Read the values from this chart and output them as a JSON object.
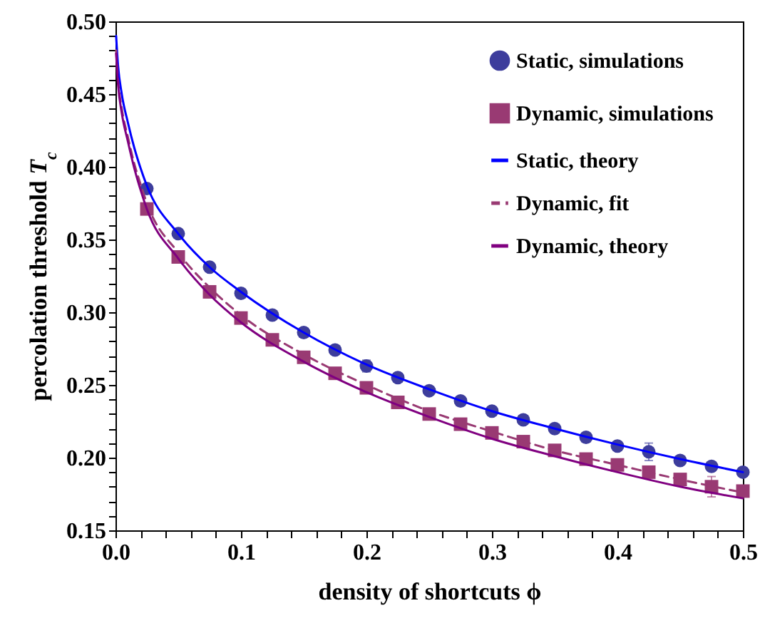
{
  "chart_data": {
    "type": "scatter",
    "xlabel": "density of shortcuts ϕ",
    "ylabel": "percolation threshold T$_{c}$",
    "xlim": [
      0,
      0.5
    ],
    "ylim": [
      0.15,
      0.5
    ],
    "xticks": [
      {
        "value": 0,
        "label": "0.0"
      },
      {
        "value": 0.02,
        "label": null
      },
      {
        "value": 0.04,
        "label": null
      },
      {
        "value": 0.06,
        "label": null
      },
      {
        "value": 0.08,
        "label": null
      },
      0.1,
      {
        "value": 0.12,
        "label": null
      },
      {
        "value": 0.14,
        "label": null
      },
      {
        "value": 0.16,
        "label": null
      },
      {
        "value": 0.18,
        "label": null
      },
      0.2,
      {
        "value": 0.22,
        "label": null
      },
      {
        "value": 0.24,
        "label": null
      },
      {
        "value": 0.26,
        "label": null
      },
      {
        "value": 0.28,
        "label": null
      },
      0.3,
      {
        "value": 0.32,
        "label": null
      },
      {
        "value": 0.34,
        "label": null
      },
      {
        "value": 0.36,
        "label": null
      },
      {
        "value": 0.38,
        "label": null
      },
      0.4,
      {
        "value": 0.42,
        "label": null
      },
      {
        "value": 0.44,
        "label": null
      },
      {
        "value": 0.46,
        "label": null
      },
      {
        "value": 0.48,
        "label": null
      },
      0.5
    ],
    "yticks": [
      0.15,
      {
        "value": 0.16,
        "label": null
      },
      {
        "value": 0.17,
        "label": null
      },
      {
        "value": 0.18,
        "label": null
      },
      {
        "value": 0.19,
        "label": null
      },
      {
        "value": 0.2,
        "label": "0.20"
      },
      {
        "value": 0.21,
        "label": null
      },
      {
        "value": 0.22,
        "label": null
      },
      {
        "value": 0.23,
        "label": null
      },
      {
        "value": 0.24,
        "label": null
      },
      0.25,
      {
        "value": 0.26,
        "label": null
      },
      {
        "value": 0.27,
        "label": null
      },
      {
        "value": 0.28,
        "label": null
      },
      {
        "value": 0.29,
        "label": null
      },
      {
        "value": 0.3,
        "label": "0.30"
      },
      {
        "value": 0.31,
        "label": null
      },
      {
        "value": 0.32,
        "label": null
      },
      {
        "value": 0.33,
        "label": null
      },
      {
        "value": 0.34,
        "label": null
      },
      0.35,
      {
        "value": 0.36,
        "label": null
      },
      {
        "value": 0.37,
        "label": null
      },
      {
        "value": 0.38,
        "label": null
      },
      {
        "value": 0.39,
        "label": null
      },
      {
        "value": 0.4,
        "label": "0.40"
      },
      {
        "value": 0.41,
        "label": null
      },
      {
        "value": 0.42,
        "label": null
      },
      {
        "value": 0.43,
        "label": null
      },
      {
        "value": 0.44,
        "label": null
      },
      0.45,
      {
        "value": 0.46,
        "label": null
      },
      {
        "value": 0.47,
        "label": null
      },
      {
        "value": 0.48,
        "label": null
      },
      {
        "value": 0.49,
        "label": null
      },
      {
        "value": 0.5,
        "label": "0.50"
      }
    ],
    "legend": "top right",
    "series": [
      {
        "name": "Static, simulations",
        "marker": "circle",
        "color": "#3d3d9c",
        "x": [
          0.025,
          0.05,
          0.075,
          0.1,
          0.125,
          0.15,
          0.175,
          0.2,
          0.225,
          0.25,
          0.275,
          0.3,
          0.325,
          0.35,
          0.375,
          0.4,
          0.425,
          0.45,
          0.475,
          0.5
        ],
        "values": [
          0.385,
          0.354,
          0.331,
          0.313,
          0.298,
          0.286,
          0.274,
          0.263,
          0.255,
          0.246,
          0.239,
          0.232,
          0.226,
          0.22,
          0.214,
          0.208,
          0.204,
          0.198,
          0.194,
          0.19
        ],
        "errors": [
          null,
          null,
          null,
          null,
          null,
          null,
          null,
          0.004,
          null,
          null,
          null,
          null,
          null,
          null,
          null,
          null,
          0.006,
          null,
          null,
          null
        ]
      },
      {
        "name": "Dynamic, simulations",
        "marker": "square",
        "color": "#993a73",
        "x": [
          0.025,
          0.05,
          0.075,
          0.1,
          0.125,
          0.15,
          0.175,
          0.2,
          0.225,
          0.25,
          0.275,
          0.3,
          0.325,
          0.35,
          0.375,
          0.4,
          0.425,
          0.45,
          0.475,
          0.5
        ],
        "values": [
          0.371,
          0.338,
          0.314,
          0.296,
          0.281,
          0.269,
          0.258,
          0.248,
          0.238,
          0.23,
          0.223,
          0.217,
          0.211,
          0.205,
          0.199,
          0.195,
          0.19,
          0.185,
          0.18,
          0.177
        ],
        "errors": [
          null,
          null,
          null,
          null,
          null,
          null,
          null,
          null,
          null,
          null,
          null,
          null,
          null,
          null,
          null,
          null,
          null,
          null,
          0.007,
          null
        ]
      },
      {
        "name": "Static, theory",
        "type": "line",
        "line_style": "solid",
        "color": "#0000ff",
        "x": [
          0.0005,
          0.002,
          0.005,
          0.01,
          0.015,
          0.02,
          0.025,
          0.05,
          0.075,
          0.1,
          0.15,
          0.2,
          0.25,
          0.3,
          0.35,
          0.4,
          0.45,
          0.5
        ],
        "values": [
          0.49,
          0.47,
          0.45,
          0.43,
          0.413,
          0.399,
          0.387,
          0.354,
          0.331,
          0.314,
          0.286,
          0.264,
          0.247,
          0.232,
          0.22,
          0.209,
          0.199,
          0.19
        ]
      },
      {
        "name": "Dynamic, fit",
        "type": "line",
        "line_style": "dashed",
        "color": "#993a73",
        "x": [
          0.0005,
          0.002,
          0.005,
          0.01,
          0.015,
          0.02,
          0.025,
          0.05,
          0.075,
          0.1,
          0.15,
          0.2,
          0.25,
          0.3,
          0.35,
          0.4,
          0.45,
          0.5
        ],
        "values": [
          0.48,
          0.46,
          0.44,
          0.42,
          0.402,
          0.388,
          0.375,
          0.341,
          0.317,
          0.298,
          0.271,
          0.25,
          0.232,
          0.218,
          0.205,
          0.195,
          0.185,
          0.176
        ]
      },
      {
        "name": "Dynamic, theory",
        "type": "line",
        "line_style": "solid",
        "color": "#800080",
        "x": [
          0.0005,
          0.002,
          0.005,
          0.01,
          0.015,
          0.02,
          0.025,
          0.05,
          0.075,
          0.1,
          0.15,
          0.2,
          0.25,
          0.3,
          0.35,
          0.4,
          0.45,
          0.5
        ],
        "values": [
          0.478,
          0.457,
          0.437,
          0.417,
          0.399,
          0.384,
          0.371,
          0.337,
          0.312,
          0.293,
          0.266,
          0.245,
          0.228,
          0.213,
          0.201,
          0.19,
          0.18,
          0.172
        ]
      }
    ]
  }
}
